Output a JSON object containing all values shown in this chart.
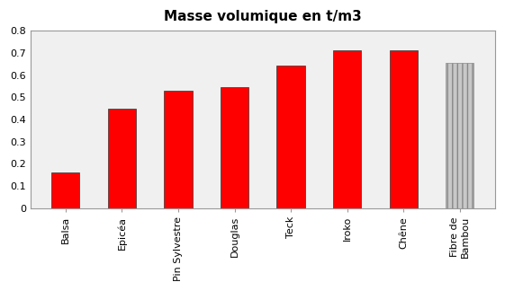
{
  "title": "Masse volumique en t/m3",
  "categories": [
    "Balsa",
    "Epicéa",
    "Pin Sylvestre",
    "Douglas",
    "Teck",
    "Iroko",
    "Chêne",
    "Fibre de\nBambou"
  ],
  "values": [
    0.16,
    0.45,
    0.53,
    0.545,
    0.645,
    0.71,
    0.71,
    0.655
  ],
  "bar_colors": [
    "#ff0000",
    "#ff0000",
    "#ff0000",
    "#ff0000",
    "#ff0000",
    "#ff0000",
    "#ff0000",
    "#c8c8c8"
  ],
  "bar_hatch": [
    null,
    null,
    null,
    null,
    null,
    null,
    null,
    "|||"
  ],
  "ylim": [
    0,
    0.8
  ],
  "yticks": [
    0,
    0.1,
    0.2,
    0.3,
    0.4,
    0.5,
    0.6,
    0.7,
    0.8
  ],
  "title_fontsize": 11,
  "tick_fontsize": 8,
  "background_color": "#ffffff",
  "axes_bg_color": "#f0f0f0"
}
